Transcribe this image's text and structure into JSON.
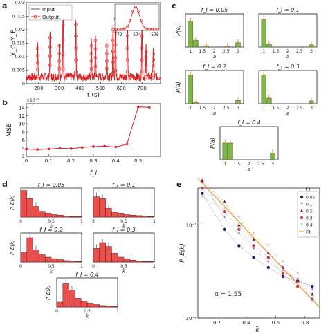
{
  "panels": {
    "a": {
      "letter": "a",
      "ylabel": "Y_C, Ŷ_E",
      "xlabel": "t (s)",
      "xticks": [
        200,
        300,
        400,
        500,
        600,
        700
      ],
      "yticks": [
        "0",
        "0.005",
        "0.01",
        "0.015",
        "0.02",
        "0.025",
        "0.03"
      ],
      "legend": [
        "Input",
        "Output"
      ],
      "inset_ticks": [
        "572",
        "574",
        "576"
      ],
      "xlim": [
        140,
        790
      ],
      "ylim": [
        0,
        0.03
      ],
      "peaks": [
        {
          "t": 195,
          "v": 0.013
        },
        {
          "t": 255,
          "v": 0.017
        },
        {
          "t": 300,
          "v": 0.014
        },
        {
          "t": 318,
          "v": 0.027
        },
        {
          "t": 380,
          "v": 0.022
        },
        {
          "t": 455,
          "v": 0.014
        },
        {
          "t": 475,
          "v": 0.016
        },
        {
          "t": 530,
          "v": 0.014
        },
        {
          "t": 560,
          "v": 0.02
        },
        {
          "t": 572,
          "v": 0.024
        },
        {
          "t": 630,
          "v": 0.022
        },
        {
          "t": 700,
          "v": 0.022
        },
        {
          "t": 720,
          "v": 0.012
        },
        {
          "t": 755,
          "v": 0.011
        }
      ]
    },
    "b": {
      "letter": "b",
      "ylabel": "MSE",
      "xlabel": "f_I",
      "exponent": "×10⁻³",
      "xticks": [
        "0",
        "0.1",
        "0.2",
        "0.3",
        "0.4",
        "0.5"
      ],
      "yticks": [
        "2",
        "4",
        "6",
        "8",
        "10",
        "12",
        "14"
      ],
      "xlim": [
        0,
        0.6
      ],
      "ylim": [
        2,
        15
      ],
      "x": [
        0,
        0.05,
        0.1,
        0.15,
        0.2,
        0.25,
        0.3,
        0.35,
        0.4,
        0.45,
        0.5,
        0.55
      ],
      "y": [
        3.8,
        3.7,
        3.8,
        4.0,
        3.9,
        4.2,
        4.4,
        4.5,
        4.3,
        5.0,
        14.2,
        14.1
      ]
    },
    "c": {
      "letter": "c",
      "ylabel": "P(a)",
      "xlabel": "a",
      "xticks": [
        "1",
        "1.5",
        "2",
        "2.5",
        "3"
      ],
      "subplots": [
        {
          "title": "f_I = 0.05",
          "bars": [
            0.47,
            0.12,
            0.0,
            0.02,
            0.0,
            0.0,
            0.0,
            0.01,
            0.0,
            0.08
          ]
        },
        {
          "title": "f_I = 0.1",
          "bars": [
            0.5,
            0.05,
            0.0,
            0.0,
            0.0,
            0.0,
            0.0,
            0.0,
            0.0,
            0.04
          ]
        },
        {
          "title": "f_I = 0.2",
          "bars": [
            0.52,
            0.02,
            0.0,
            0.0,
            0.0,
            0.0,
            0.0,
            0.0,
            0.0,
            0.06
          ]
        },
        {
          "title": "f_I = 0.3",
          "bars": [
            0.52,
            0.1,
            0.0,
            0.0,
            0.0,
            0.0,
            0.0,
            0.0,
            0.0,
            0.05
          ]
        },
        {
          "title": "f_I = 0.4",
          "bars": [
            0.3,
            0.3,
            0.0,
            0.0,
            0.0,
            0.0,
            0.0,
            0.0,
            0.0,
            0.12
          ]
        }
      ]
    },
    "d": {
      "letter": "d",
      "ylabel": "P_E(k̃)",
      "xlabel": "k̃",
      "xticks": [
        "0",
        "0.5",
        "1"
      ],
      "subplots": [
        {
          "title": "f_I = 0.05",
          "bars": [
            0.55,
            0.38,
            0.22,
            0.12,
            0.08,
            0.05,
            0.04,
            0.02,
            0.01,
            0.01
          ]
        },
        {
          "title": "f_I = 0.1",
          "bars": [
            0.42,
            0.38,
            0.18,
            0.1,
            0.08,
            0.05,
            0.04,
            0.03,
            0.02,
            0.01
          ]
        },
        {
          "title": "f_I = 0.2",
          "bars": [
            0.2,
            0.5,
            0.25,
            0.15,
            0.1,
            0.07,
            0.05,
            0.03,
            0.02,
            0.01
          ]
        },
        {
          "title": "f_I = 0.3",
          "bars": [
            0.28,
            0.4,
            0.32,
            0.18,
            0.1,
            0.06,
            0.04,
            0.02,
            0.01,
            0.01
          ]
        },
        {
          "title": "f_I = 0.4",
          "bars": [
            0.1,
            0.48,
            0.35,
            0.18,
            0.12,
            0.08,
            0.05,
            0.03,
            0.02,
            0.01
          ]
        }
      ]
    },
    "e": {
      "letter": "e",
      "ylabel": "P_E(k̃)",
      "xlabel": "k̃",
      "annotation": "α = 1.55",
      "legend_title": "f_I",
      "xticks": [
        "0.2",
        "0.4",
        "0.6",
        "0.8"
      ],
      "ytick_labels": [
        "10⁻²",
        "10⁻¹"
      ],
      "xlim": [
        0.07,
        0.9
      ],
      "ylim_log": [
        -2,
        -0.6
      ],
      "series": [
        {
          "name": "0.05",
          "color": "#1f1f6e",
          "marker": "circle",
          "x": [
            0.1,
            0.25,
            0.35,
            0.45,
            0.55,
            0.65,
            0.75,
            0.85
          ],
          "y": [
            0.22,
            0.09,
            0.06,
            0.045,
            0.035,
            0.028,
            0.025,
            0.022
          ]
        },
        {
          "name": "0.1",
          "color": "#7a3f9a",
          "marker": "star",
          "x": [
            0.1,
            0.25,
            0.35,
            0.45,
            0.55,
            0.65,
            0.75,
            0.85
          ],
          "y": [
            0.3,
            0.12,
            0.08,
            0.055,
            0.04,
            0.032,
            0.026,
            0.02
          ]
        },
        {
          "name": "0.2",
          "color": "#8b1a4a",
          "marker": "triangle",
          "x": [
            0.1,
            0.25,
            0.35,
            0.45,
            0.55,
            0.65,
            0.75,
            0.85
          ],
          "y": [
            0.3,
            0.18,
            0.1,
            0.07,
            0.05,
            0.035,
            0.025,
            0.018
          ]
        },
        {
          "name": "0.3",
          "color": "#c23b5a",
          "marker": "circle",
          "x": [
            0.1,
            0.25,
            0.35,
            0.45,
            0.55,
            0.65,
            0.75,
            0.85
          ],
          "y": [
            0.25,
            0.14,
            0.09,
            0.06,
            0.045,
            0.03,
            0.022,
            0.016
          ]
        },
        {
          "name": "0.4",
          "color": "#e88fa0",
          "marker": "star",
          "x": [
            0.1,
            0.25,
            0.35,
            0.45,
            0.55,
            0.65,
            0.75,
            0.85
          ],
          "y": [
            0.2,
            0.15,
            0.12,
            0.08,
            0.06,
            0.04,
            0.03,
            0.015
          ]
        }
      ],
      "fit": {
        "name": "Fit",
        "color": "#e8a020",
        "x": [
          0.07,
          0.9
        ],
        "y": [
          0.32,
          0.013
        ]
      }
    }
  }
}
